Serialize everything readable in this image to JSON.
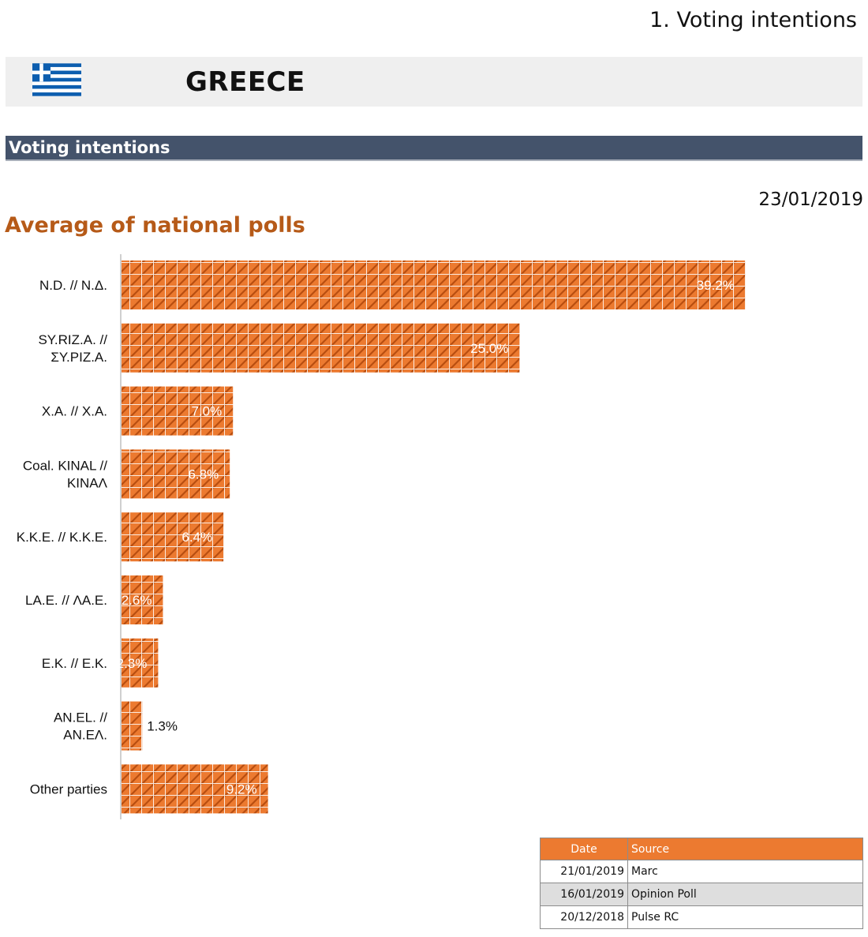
{
  "page": {
    "section_title": "1. Voting intentions",
    "country": "GREECE",
    "section_bar": "Voting intentions",
    "date": "23/01/2019",
    "chart_title": "Average of national polls"
  },
  "colors": {
    "bar": "#ec7a30",
    "bar_hatch": "#b84e10",
    "section_bar": "#44536b",
    "title": "#b65a18",
    "flag_blue": "#0d5eaf"
  },
  "chart_data": {
    "type": "bar",
    "orientation": "horizontal",
    "title": "Average of national polls",
    "categories": [
      [
        "N.D. // N.Δ."
      ],
      [
        "SY.RIZ.A. //",
        "ΣΥ.ΡΙΖ.Α."
      ],
      [
        "X.A. // Χ.Α."
      ],
      [
        "Coal. KINAL //",
        "ΚΙΝΑΛ"
      ],
      [
        "K.K.E. // Κ.Κ.Ε."
      ],
      [
        "LA.E. // ΛΑ.Ε."
      ],
      [
        "E.K. // Ε.Κ."
      ],
      [
        "AN.EL. //",
        "ΑΝ.ΕΛ."
      ],
      [
        "Other parties"
      ]
    ],
    "values": [
      39.2,
      25.0,
      7.0,
      6.8,
      6.4,
      2.6,
      2.3,
      1.3,
      9.2
    ],
    "value_labels": [
      "39.2%",
      "25.0%",
      "7.0%",
      "6.8%",
      "6.4%",
      "2.6%",
      "2.3%",
      "1.3%",
      "9.2%"
    ],
    "xlim": [
      0,
      40
    ],
    "grid": false
  },
  "sources_table": {
    "headers": [
      "Date",
      "Source"
    ],
    "rows": [
      [
        "21/01/2019",
        "Marc"
      ],
      [
        "16/01/2019",
        "Opinion Poll"
      ],
      [
        "20/12/2018",
        "Pulse RC"
      ]
    ]
  }
}
